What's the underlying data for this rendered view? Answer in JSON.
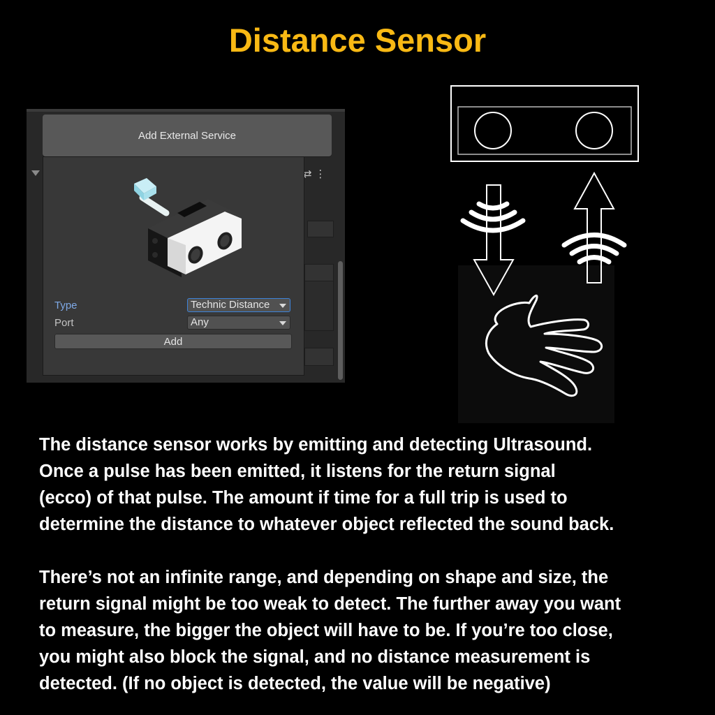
{
  "page": {
    "title": "Distance Sensor",
    "title_color": "#f9b914",
    "background": "#000000"
  },
  "editor": {
    "add_external_service_label": "Add External Service",
    "header_icons": "⇄ ⋮",
    "popup": {
      "type_label": "Type",
      "type_value": "Technic Distance",
      "port_label": "Port",
      "port_value": "Any",
      "add_label": "Add",
      "selected_accent": "#7ea9e6"
    }
  },
  "diagram": {
    "icons": [
      "distance-sensor-icon",
      "arrow-down-icon",
      "sound-waves-icon",
      "arrow-up-icon",
      "hand-icon"
    ]
  },
  "description": {
    "paragraph1_lines": [
      "The distance sensor works by emitting and detecting Ultrasound.",
      "Once a pulse has been emitted, it listens for the return signal",
      "(ecco) of that pulse. The amount if time for a full trip is used to",
      "determine the distance to whatever object reflected the sound back."
    ],
    "paragraph2_lines": [
      "There’s not an infinite range, and depending on shape and size, the",
      "return signal might be too weak to detect. The further away you want",
      "to measure, the bigger the object will have to be. If you’re too close,",
      "you might also block the signal, and no distance measurement is",
      "detected. (If no object is detected, the value will be negative)"
    ]
  }
}
